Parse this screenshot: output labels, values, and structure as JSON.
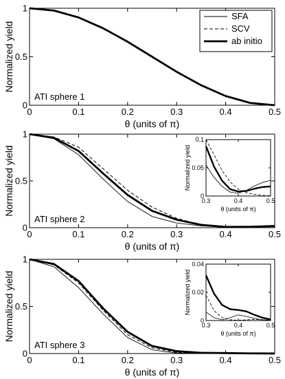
{
  "chart_data": [
    {
      "type": "line",
      "title": "",
      "panel_label": "ATI sphere 1",
      "xlabel": "θ (units of π)",
      "ylabel": "Normalized yield",
      "xlim": [
        0,
        0.5
      ],
      "ylim": [
        0,
        1
      ],
      "xticks": [
        "0",
        "0.1",
        "0.2",
        "0.3",
        "0.4",
        "0.5"
      ],
      "yticks": [
        "0",
        "0.5",
        "1"
      ],
      "legend": {
        "placement": "top-right",
        "entries": [
          "SFA",
          "SCV",
          "ab initio"
        ]
      },
      "x": [
        0,
        0.05,
        0.1,
        0.15,
        0.2,
        0.25,
        0.3,
        0.35,
        0.4,
        0.45,
        0.5
      ],
      "series": [
        {
          "name": "SFA",
          "style": "thin",
          "values": [
            1,
            0.976,
            0.905,
            0.794,
            0.655,
            0.5,
            0.345,
            0.206,
            0.095,
            0.024,
            0
          ]
        },
        {
          "name": "SCV",
          "style": "dashed",
          "values": [
            1,
            0.976,
            0.905,
            0.794,
            0.655,
            0.5,
            0.345,
            0.206,
            0.095,
            0.024,
            0
          ]
        },
        {
          "name": "ab initio",
          "style": "thick",
          "values": [
            1,
            0.976,
            0.905,
            0.794,
            0.655,
            0.5,
            0.345,
            0.206,
            0.095,
            0.024,
            0
          ]
        }
      ]
    },
    {
      "type": "line",
      "title": "",
      "panel_label": "ATI sphere 2",
      "xlabel": "θ (units of π)",
      "ylabel": "Normalized yield",
      "xlim": [
        0,
        0.5
      ],
      "ylim": [
        0,
        1
      ],
      "xticks": [
        "0",
        "0.1",
        "0.2",
        "0.3",
        "0.4",
        "0.5"
      ],
      "yticks": [
        "0",
        "0.5",
        "1"
      ],
      "x": [
        0,
        0.05,
        0.1,
        0.15,
        0.2,
        0.25,
        0.3,
        0.35,
        0.4,
        0.45,
        0.5
      ],
      "series": [
        {
          "name": "SFA",
          "style": "thin",
          "values": [
            1,
            0.95,
            0.78,
            0.52,
            0.28,
            0.12,
            0.05,
            0.02,
            0.005,
            0.01,
            0.02
          ]
        },
        {
          "name": "SCV",
          "style": "dashed",
          "values": [
            1,
            0.97,
            0.86,
            0.63,
            0.4,
            0.22,
            0.1,
            0.03,
            0.008,
            0.002,
            0.001
          ]
        },
        {
          "name": "ab initio",
          "style": "thick",
          "values": [
            1,
            0.96,
            0.82,
            0.58,
            0.35,
            0.18,
            0.085,
            0.03,
            0.008,
            0.01,
            0.018
          ]
        }
      ],
      "inset": {
        "xlabel": "θ (units of π)",
        "ylabel": "Normalized yield",
        "xlim": [
          0.3,
          0.5
        ],
        "ylim": [
          0,
          0.1
        ],
        "xticks": [
          "0.3",
          "0.4",
          "0.5"
        ],
        "yticks": [
          "0",
          "0.05",
          "0.1"
        ],
        "x": [
          0.3,
          0.325,
          0.35,
          0.375,
          0.4,
          0.425,
          0.45,
          0.475,
          0.5
        ],
        "series": [
          {
            "name": "SFA",
            "style": "thin",
            "values": [
              0.055,
              0.033,
              0.017,
              0.007,
              0.005,
              0.01,
              0.018,
              0.024,
              0.028
            ]
          },
          {
            "name": "SCV",
            "style": "dashed",
            "values": [
              0.1,
              0.073,
              0.045,
              0.025,
              0.012,
              0.006,
              0.003,
              0.001,
              0.0005
            ]
          },
          {
            "name": "ab initio",
            "style": "thick",
            "values": [
              0.088,
              0.052,
              0.027,
              0.012,
              0.008,
              0.009,
              0.013,
              0.016,
              0.017
            ]
          }
        ]
      }
    },
    {
      "type": "line",
      "title": "",
      "panel_label": "ATI sphere 3",
      "xlabel": "θ (units of π)",
      "ylabel": "Normalized yield",
      "xlim": [
        0,
        0.5
      ],
      "ylim": [
        0,
        1
      ],
      "xticks": [
        "0",
        "0.1",
        "0.2",
        "0.3",
        "0.4",
        "0.5"
      ],
      "yticks": [
        "0",
        "0.5",
        "1"
      ],
      "x": [
        0,
        0.05,
        0.1,
        0.15,
        0.2,
        0.25,
        0.3,
        0.35,
        0.4,
        0.45,
        0.5
      ],
      "series": [
        {
          "name": "SFA",
          "style": "thin",
          "values": [
            1,
            0.92,
            0.7,
            0.42,
            0.17,
            0.04,
            0.005,
            0.002,
            0.001,
            0.0005,
            0
          ]
        },
        {
          "name": "SCV",
          "style": "dashed",
          "values": [
            1,
            0.94,
            0.75,
            0.46,
            0.2,
            0.06,
            0.012,
            0.004,
            0.001,
            0.0005,
            0
          ]
        },
        {
          "name": "ab initio",
          "style": "thick",
          "values": [
            1,
            0.95,
            0.77,
            0.48,
            0.23,
            0.08,
            0.025,
            0.008,
            0.005,
            0.002,
            0.0005
          ]
        }
      ],
      "inset": {
        "xlabel": "θ (units of π)",
        "ylabel": "Normalized yield",
        "xlim": [
          0.3,
          0.5
        ],
        "ylim": [
          0,
          0.04
        ],
        "xticks": [
          "0.3",
          "0.4",
          "0.5"
        ],
        "yticks": [
          "0",
          "0.02",
          "0.04"
        ],
        "x": [
          0.3,
          0.325,
          0.35,
          0.375,
          0.4,
          0.425,
          0.45,
          0.475,
          0.5
        ],
        "series": [
          {
            "name": "SFA",
            "style": "thin",
            "values": [
              0.006,
              0.002,
              0.0005,
              0.002,
              0.004,
              0.003,
              0.0015,
              0.0006,
              0.0002
            ]
          },
          {
            "name": "SCV",
            "style": "dashed",
            "values": [
              0.018,
              0.007,
              0.002,
              0.0005,
              0.0002,
              0.0005,
              0.0008,
              0.0005,
              0.0002
            ]
          },
          {
            "name": "ab initio",
            "style": "thick",
            "values": [
              0.032,
              0.019,
              0.011,
              0.008,
              0.0075,
              0.0065,
              0.004,
              0.002,
              0.0008
            ]
          }
        ]
      }
    }
  ]
}
